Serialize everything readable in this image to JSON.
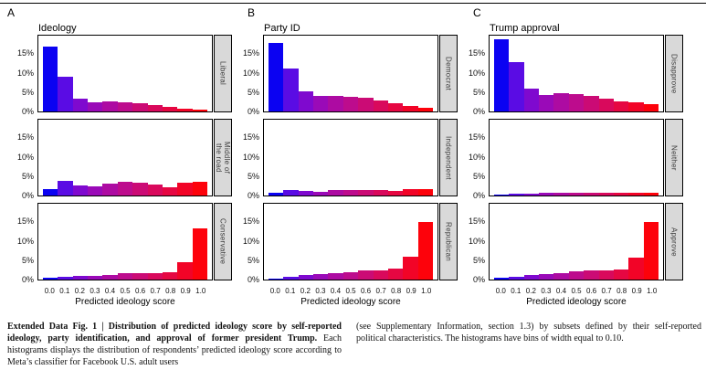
{
  "axes": {
    "ylim": [
      0,
      20
    ],
    "y_ticks": [
      {
        "value": 15,
        "label": "15%"
      },
      {
        "value": 10,
        "label": "10%"
      },
      {
        "value": 5,
        "label": "5%"
      },
      {
        "value": 0,
        "label": "0%"
      }
    ]
  },
  "colors": {
    "bar_gradient": [
      "#0b02f2",
      "#5a0ce4",
      "#7f09cf",
      "#9a0ab8",
      "#ad0ba2",
      "#bd0c8d",
      "#cb0b75",
      "#d9095c",
      "#e60742",
      "#f20427",
      "#fd020b"
    ],
    "strip_bg": "#d9d9d9",
    "plot_border": "#000000"
  },
  "chart_data": [
    {
      "type": "bar",
      "panel": "A",
      "title": "Ideology",
      "x": [
        "0.0",
        "0.1",
        "0.2",
        "0.3",
        "0.4",
        "0.5",
        "0.6",
        "0.7",
        "0.8",
        "0.9",
        "1.0"
      ],
      "bin_width": 0.1,
      "xlabel": "Predicted ideology score",
      "ylabel": "%",
      "ylim": [
        0,
        20
      ],
      "series": [
        {
          "name": "Liberal",
          "values": [
            17.0,
            9.2,
            3.4,
            2.5,
            2.6,
            2.4,
            2.2,
            1.7,
            1.2,
            0.8,
            0.4
          ]
        },
        {
          "name": "Middle of\nthe road",
          "values": [
            1.8,
            3.9,
            2.7,
            2.4,
            3.2,
            3.5,
            3.3,
            2.8,
            2.2,
            3.4,
            3.7
          ]
        },
        {
          "name": "Conservative",
          "values": [
            0.5,
            0.8,
            1.0,
            1.0,
            1.3,
            1.6,
            1.7,
            1.8,
            1.9,
            4.5,
            13.5
          ]
        }
      ]
    },
    {
      "type": "bar",
      "panel": "B",
      "title": "Party ID",
      "x": [
        "0.0",
        "0.1",
        "0.2",
        "0.3",
        "0.4",
        "0.5",
        "0.6",
        "0.7",
        "0.8",
        "0.9",
        "1.0"
      ],
      "bin_width": 0.1,
      "xlabel": "Predicted ideology score",
      "ylabel": "%",
      "ylim": [
        0,
        20
      ],
      "series": [
        {
          "name": "Democrat",
          "values": [
            18.0,
            11.3,
            5.2,
            4.2,
            4.1,
            3.9,
            3.5,
            3.0,
            2.2,
            1.5,
            0.9
          ]
        },
        {
          "name": "Independent",
          "values": [
            0.8,
            1.5,
            1.2,
            1.0,
            1.4,
            1.5,
            1.5,
            1.5,
            1.2,
            1.6,
            1.7
          ]
        },
        {
          "name": "Republican",
          "values": [
            0.3,
            0.8,
            1.1,
            1.4,
            1.8,
            2.0,
            2.3,
            2.5,
            2.8,
            6.0,
            15.2
          ]
        }
      ]
    },
    {
      "type": "bar",
      "panel": "C",
      "title": "Trump approval",
      "x": [
        "0.0",
        "0.1",
        "0.2",
        "0.3",
        "0.4",
        "0.5",
        "0.6",
        "0.7",
        "0.8",
        "0.9",
        "1.0"
      ],
      "bin_width": 0.1,
      "xlabel": "Predicted ideology score",
      "ylabel": "%",
      "ylim": [
        0,
        20
      ],
      "series": [
        {
          "name": "Disapprove",
          "values": [
            19.0,
            13.0,
            6.0,
            4.3,
            4.8,
            4.6,
            4.1,
            3.4,
            2.7,
            2.3,
            1.9
          ]
        },
        {
          "name": "Neither",
          "values": [
            0.2,
            0.4,
            0.6,
            0.7,
            0.7,
            0.7,
            0.7,
            0.7,
            0.7,
            0.7,
            0.8
          ]
        },
        {
          "name": "Approve",
          "values": [
            0.4,
            0.8,
            1.1,
            1.4,
            1.8,
            2.2,
            2.3,
            2.5,
            2.6,
            5.8,
            15.3
          ]
        }
      ]
    }
  ],
  "caption": {
    "left_bold": "Extended Data Fig. 1 | Distribution of predicted ideology score by self-reported ideology, party identification, and approval of former president Trump.",
    "left_rest": " Each histograms displays the distribution of respondents’ predicted ideology score according to Meta’s classifier for Facebook U.S. adult users",
    "right": "(see Supplementary Information, section 1.3) by subsets defined by their self-reported political characteristics. The histograms have bins of width equal to 0.10."
  }
}
